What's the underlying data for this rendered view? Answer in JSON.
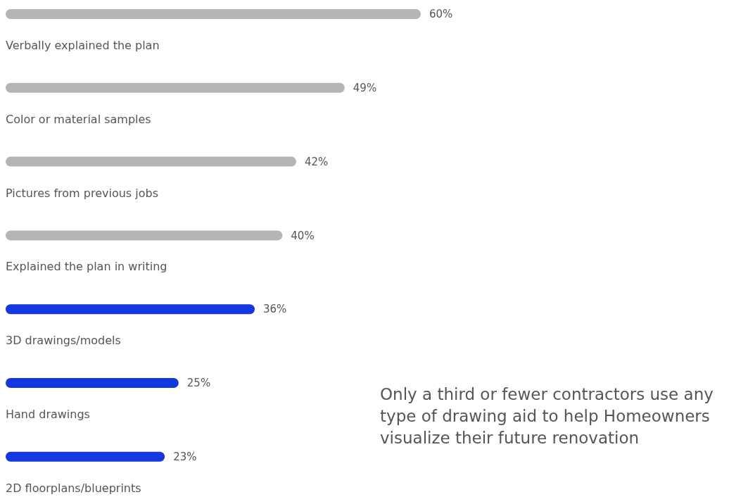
{
  "chart_data": {
    "type": "bar",
    "orientation": "horizontal",
    "categories": [
      "Verbally explained the plan",
      "Color or material samples",
      "Pictures from previous jobs",
      "Explained the plan in writing",
      "3D drawings/models",
      "Hand drawings",
      "2D floorplans/blueprints"
    ],
    "values": [
      60,
      49,
      42,
      40,
      36,
      25,
      23
    ],
    "colors": [
      "#b5b5b5",
      "#b5b5b5",
      "#b5b5b5",
      "#b5b5b5",
      "#1437e0",
      "#1437e0",
      "#1437e0"
    ],
    "value_labels": [
      "60%",
      "49%",
      "42%",
      "40%",
      "36%",
      "25%",
      "23%"
    ],
    "annotations": [
      "Only a third or fewer contractors use any type of drawing aid to help Homeowners visualize their future renovation"
    ]
  }
}
